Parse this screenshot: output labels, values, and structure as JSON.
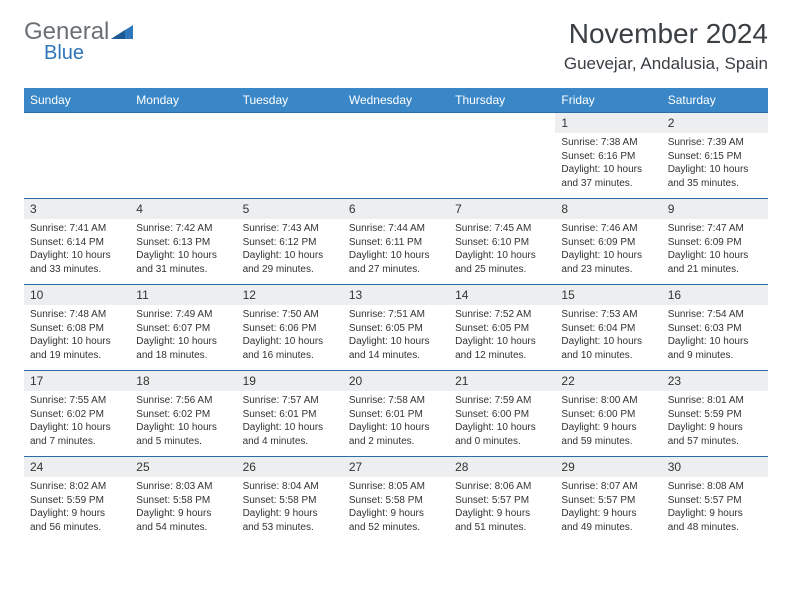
{
  "logo": {
    "word1": "General",
    "word2": "Blue"
  },
  "title": "November 2024",
  "location": "Guevejar, Andalusia, Spain",
  "colors": {
    "header_bg": "#3a87c8",
    "header_text": "#ffffff",
    "daynum_bg": "#eceeef",
    "border": "#2d6ca3",
    "text": "#333333",
    "logo_gray": "#6b7074",
    "logo_blue": "#2d76bb"
  },
  "weekdays": [
    "Sunday",
    "Monday",
    "Tuesday",
    "Wednesday",
    "Thursday",
    "Friday",
    "Saturday"
  ],
  "weeks": [
    [
      null,
      null,
      null,
      null,
      null,
      {
        "n": "1",
        "sunrise": "7:38 AM",
        "sunset": "6:16 PM",
        "daylight": "10 hours and 37 minutes."
      },
      {
        "n": "2",
        "sunrise": "7:39 AM",
        "sunset": "6:15 PM",
        "daylight": "10 hours and 35 minutes."
      }
    ],
    [
      {
        "n": "3",
        "sunrise": "7:41 AM",
        "sunset": "6:14 PM",
        "daylight": "10 hours and 33 minutes."
      },
      {
        "n": "4",
        "sunrise": "7:42 AM",
        "sunset": "6:13 PM",
        "daylight": "10 hours and 31 minutes."
      },
      {
        "n": "5",
        "sunrise": "7:43 AM",
        "sunset": "6:12 PM",
        "daylight": "10 hours and 29 minutes."
      },
      {
        "n": "6",
        "sunrise": "7:44 AM",
        "sunset": "6:11 PM",
        "daylight": "10 hours and 27 minutes."
      },
      {
        "n": "7",
        "sunrise": "7:45 AM",
        "sunset": "6:10 PM",
        "daylight": "10 hours and 25 minutes."
      },
      {
        "n": "8",
        "sunrise": "7:46 AM",
        "sunset": "6:09 PM",
        "daylight": "10 hours and 23 minutes."
      },
      {
        "n": "9",
        "sunrise": "7:47 AM",
        "sunset": "6:09 PM",
        "daylight": "10 hours and 21 minutes."
      }
    ],
    [
      {
        "n": "10",
        "sunrise": "7:48 AM",
        "sunset": "6:08 PM",
        "daylight": "10 hours and 19 minutes."
      },
      {
        "n": "11",
        "sunrise": "7:49 AM",
        "sunset": "6:07 PM",
        "daylight": "10 hours and 18 minutes."
      },
      {
        "n": "12",
        "sunrise": "7:50 AM",
        "sunset": "6:06 PM",
        "daylight": "10 hours and 16 minutes."
      },
      {
        "n": "13",
        "sunrise": "7:51 AM",
        "sunset": "6:05 PM",
        "daylight": "10 hours and 14 minutes."
      },
      {
        "n": "14",
        "sunrise": "7:52 AM",
        "sunset": "6:05 PM",
        "daylight": "10 hours and 12 minutes."
      },
      {
        "n": "15",
        "sunrise": "7:53 AM",
        "sunset": "6:04 PM",
        "daylight": "10 hours and 10 minutes."
      },
      {
        "n": "16",
        "sunrise": "7:54 AM",
        "sunset": "6:03 PM",
        "daylight": "10 hours and 9 minutes."
      }
    ],
    [
      {
        "n": "17",
        "sunrise": "7:55 AM",
        "sunset": "6:02 PM",
        "daylight": "10 hours and 7 minutes."
      },
      {
        "n": "18",
        "sunrise": "7:56 AM",
        "sunset": "6:02 PM",
        "daylight": "10 hours and 5 minutes."
      },
      {
        "n": "19",
        "sunrise": "7:57 AM",
        "sunset": "6:01 PM",
        "daylight": "10 hours and 4 minutes."
      },
      {
        "n": "20",
        "sunrise": "7:58 AM",
        "sunset": "6:01 PM",
        "daylight": "10 hours and 2 minutes."
      },
      {
        "n": "21",
        "sunrise": "7:59 AM",
        "sunset": "6:00 PM",
        "daylight": "10 hours and 0 minutes."
      },
      {
        "n": "22",
        "sunrise": "8:00 AM",
        "sunset": "6:00 PM",
        "daylight": "9 hours and 59 minutes."
      },
      {
        "n": "23",
        "sunrise": "8:01 AM",
        "sunset": "5:59 PM",
        "daylight": "9 hours and 57 minutes."
      }
    ],
    [
      {
        "n": "24",
        "sunrise": "8:02 AM",
        "sunset": "5:59 PM",
        "daylight": "9 hours and 56 minutes."
      },
      {
        "n": "25",
        "sunrise": "8:03 AM",
        "sunset": "5:58 PM",
        "daylight": "9 hours and 54 minutes."
      },
      {
        "n": "26",
        "sunrise": "8:04 AM",
        "sunset": "5:58 PM",
        "daylight": "9 hours and 53 minutes."
      },
      {
        "n": "27",
        "sunrise": "8:05 AM",
        "sunset": "5:58 PM",
        "daylight": "9 hours and 52 minutes."
      },
      {
        "n": "28",
        "sunrise": "8:06 AM",
        "sunset": "5:57 PM",
        "daylight": "9 hours and 51 minutes."
      },
      {
        "n": "29",
        "sunrise": "8:07 AM",
        "sunset": "5:57 PM",
        "daylight": "9 hours and 49 minutes."
      },
      {
        "n": "30",
        "sunrise": "8:08 AM",
        "sunset": "5:57 PM",
        "daylight": "9 hours and 48 minutes."
      }
    ]
  ],
  "labels": {
    "sunrise": "Sunrise:",
    "sunset": "Sunset:",
    "daylight": "Daylight:"
  }
}
